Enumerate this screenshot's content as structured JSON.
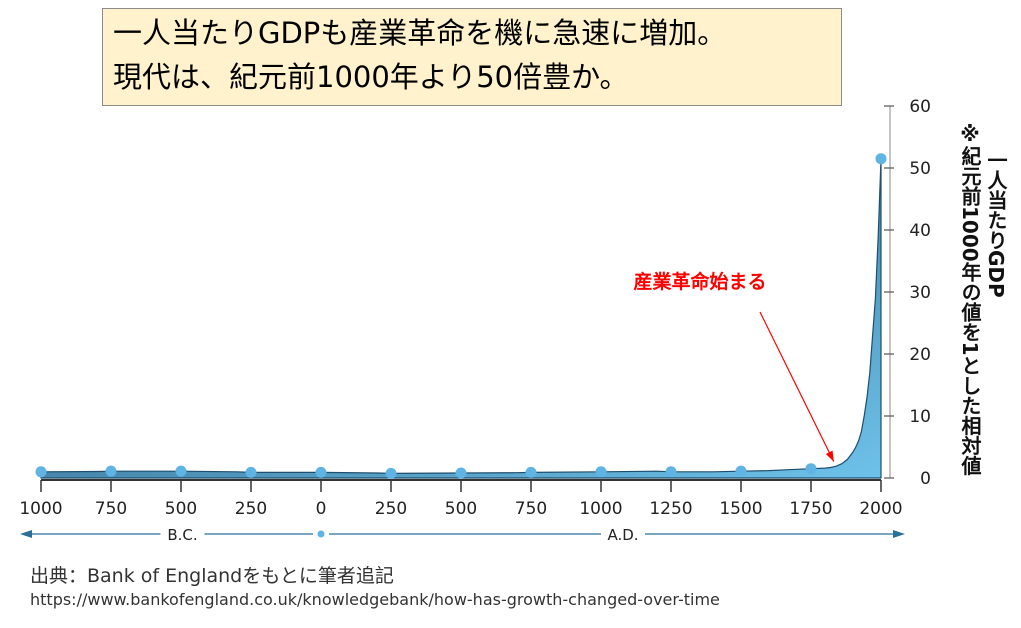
{
  "headline": {
    "line1": "一人当たりGDPも産業革命を機に急速に増加。",
    "line2": "現代は、紀元前1000年より50倍豊か。"
  },
  "chart_data": {
    "type": "area",
    "title": "",
    "ylabel_line1": "一人当たりGDP",
    "ylabel_line2": "※紀元前1000年の値を1とした相対値",
    "ylim": [
      0,
      60
    ],
    "yticks": [
      0,
      10,
      20,
      30,
      40,
      50,
      60
    ],
    "xlim": [
      -1000,
      2000
    ],
    "xticks": [
      -1000,
      -750,
      -500,
      -250,
      0,
      250,
      500,
      750,
      1000,
      1250,
      1500,
      1750,
      2000
    ],
    "xtick_labels": [
      "1000",
      "750",
      "500",
      "250",
      "0",
      "250",
      "500",
      "750",
      "1000",
      "1250",
      "1500",
      "1750",
      "2000"
    ],
    "era_labels": {
      "bc": "B.C.",
      "ad": "A.D."
    },
    "annotation": {
      "text": "産業革命始まる",
      "x": 1860,
      "y": 2,
      "color": "#ff0000"
    },
    "series": [
      {
        "x": [
          -1000,
          -800,
          -750,
          -500,
          -300,
          -250,
          0,
          200,
          250,
          500,
          700,
          750,
          1000,
          1200,
          1250,
          1400,
          1500,
          1600,
          1700,
          1750,
          1800,
          1820,
          1840,
          1860,
          1880,
          1900,
          1910,
          1920,
          1930,
          1940,
          1950,
          1960,
          1970,
          1980,
          1990,
          2000
        ],
        "values": [
          1,
          1.05,
          1.1,
          1.1,
          1.0,
          0.9,
          0.9,
          0.8,
          0.75,
          0.8,
          0.85,
          0.9,
          1.0,
          1.1,
          1.0,
          1.0,
          1.1,
          1.2,
          1.4,
          1.5,
          1.6,
          1.7,
          1.9,
          2.3,
          3.0,
          4.2,
          5.0,
          6.0,
          7.5,
          10,
          13,
          17,
          23,
          29,
          39,
          51.5
        ]
      }
    ],
    "markers": {
      "x": [
        -1000,
        -750,
        -500,
        -250,
        0,
        250,
        500,
        750,
        1000,
        1250,
        1500,
        1750,
        2000
      ],
      "values": [
        1,
        1.1,
        1.1,
        0.9,
        0.9,
        0.75,
        0.8,
        0.9,
        1.0,
        1.0,
        1.1,
        1.5,
        51.5
      ]
    },
    "colors": {
      "fill_top": "#1f4e6e",
      "fill_bottom": "#6ec2ea",
      "marker": "#5fb4e3",
      "axis": "#333333",
      "era_line": "#2a6f97"
    }
  },
  "source": {
    "line1": "出典：Bank of Englandをもとに筆者追記",
    "line2": "https://www.bankofengland.co.uk/knowledgebank/how-has-growth-changed-over-time"
  }
}
